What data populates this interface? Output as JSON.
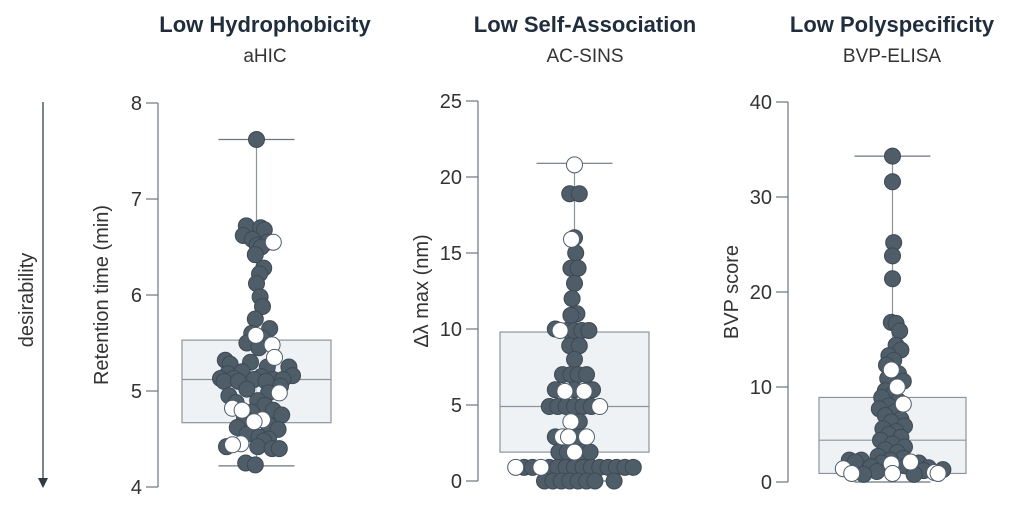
{
  "side_label": "desirability",
  "chart_data": [
    {
      "type": "scatter",
      "title": "Low Hydrophobicity",
      "subtitle": "aHIC",
      "ylabel": "Retention time (min)",
      "ylim": [
        4,
        8
      ],
      "yticks": [
        4,
        5,
        6,
        7,
        8
      ],
      "box": {
        "q1": 4.67,
        "median": 5.12,
        "q3": 5.53,
        "whisker_low": 4.22,
        "whisker_high": 7.62
      },
      "point_color": "#4f5d69",
      "highlight_color": "#ffffff",
      "points": [
        {
          "y": 7.62,
          "x": 0.0,
          "hl": false
        },
        {
          "y": 6.72,
          "x": -0.85,
          "hl": false
        },
        {
          "y": 6.7,
          "x": 0.35,
          "hl": false
        },
        {
          "y": 6.68,
          "x": 0.65,
          "hl": false
        },
        {
          "y": 6.62,
          "x": -1.1,
          "hl": false
        },
        {
          "y": 6.58,
          "x": -0.35,
          "hl": false
        },
        {
          "y": 6.55,
          "x": 0.9,
          "hl": false
        },
        {
          "y": 6.52,
          "x": 0.05,
          "hl": false
        },
        {
          "y": 6.5,
          "x": 0.4,
          "hl": false
        },
        {
          "y": 6.55,
          "x": 1.4,
          "hl": true
        },
        {
          "y": 6.42,
          "x": -0.1,
          "hl": false
        },
        {
          "y": 6.28,
          "x": 0.6,
          "hl": false
        },
        {
          "y": 6.22,
          "x": 0.25,
          "hl": false
        },
        {
          "y": 6.12,
          "x": 0.0,
          "hl": false
        },
        {
          "y": 5.98,
          "x": 0.3,
          "hl": false
        },
        {
          "y": 5.88,
          "x": 0.5,
          "hl": false
        },
        {
          "y": 5.75,
          "x": -0.1,
          "hl": false
        },
        {
          "y": 5.65,
          "x": 1.1,
          "hl": false
        },
        {
          "y": 5.6,
          "x": -0.4,
          "hl": false
        },
        {
          "y": 5.58,
          "x": -0.05,
          "hl": true
        },
        {
          "y": 5.55,
          "x": 0.5,
          "hl": false
        },
        {
          "y": 5.5,
          "x": -0.8,
          "hl": false
        },
        {
          "y": 5.48,
          "x": 1.3,
          "hl": true
        },
        {
          "y": 5.45,
          "x": 0.2,
          "hl": false
        },
        {
          "y": 5.35,
          "x": 1.5,
          "hl": true
        },
        {
          "y": 5.32,
          "x": -2.6,
          "hl": false
        },
        {
          "y": 5.3,
          "x": -0.5,
          "hl": false
        },
        {
          "y": 5.28,
          "x": -2.2,
          "hl": false
        },
        {
          "y": 5.25,
          "x": 0.9,
          "hl": false
        },
        {
          "y": 5.25,
          "x": 2.7,
          "hl": false
        },
        {
          "y": 5.2,
          "x": -1.2,
          "hl": false
        },
        {
          "y": 5.18,
          "x": -2.4,
          "hl": false
        },
        {
          "y": 5.16,
          "x": 3.0,
          "hl": false
        },
        {
          "y": 5.15,
          "x": 0.4,
          "hl": false
        },
        {
          "y": 5.13,
          "x": -3.0,
          "hl": false
        },
        {
          "y": 5.13,
          "x": -1.9,
          "hl": false
        },
        {
          "y": 5.12,
          "x": -0.2,
          "hl": false
        },
        {
          "y": 5.12,
          "x": 1.4,
          "hl": false
        },
        {
          "y": 5.12,
          "x": 2.2,
          "hl": false
        },
        {
          "y": 5.1,
          "x": -2.7,
          "hl": false
        },
        {
          "y": 5.1,
          "x": -1.5,
          "hl": false
        },
        {
          "y": 5.1,
          "x": 0.8,
          "hl": false
        },
        {
          "y": 5.05,
          "x": 2.0,
          "hl": false
        },
        {
          "y": 5.02,
          "x": -0.8,
          "hl": false
        },
        {
          "y": 4.98,
          "x": 1.0,
          "hl": false
        },
        {
          "y": 4.98,
          "x": 1.9,
          "hl": true
        },
        {
          "y": 4.95,
          "x": -2.3,
          "hl": false
        },
        {
          "y": 4.9,
          "x": 0.1,
          "hl": false
        },
        {
          "y": 4.88,
          "x": -1.7,
          "hl": false
        },
        {
          "y": 4.85,
          "x": 0.7,
          "hl": false
        },
        {
          "y": 4.82,
          "x": -2.0,
          "hl": true
        },
        {
          "y": 4.8,
          "x": -1.2,
          "hl": true
        },
        {
          "y": 4.8,
          "x": 1.4,
          "hl": false
        },
        {
          "y": 4.78,
          "x": -0.4,
          "hl": false
        },
        {
          "y": 4.75,
          "x": 2.1,
          "hl": false
        },
        {
          "y": 4.72,
          "x": -1.0,
          "hl": false
        },
        {
          "y": 4.7,
          "x": 0.5,
          "hl": true
        },
        {
          "y": 4.68,
          "x": -0.2,
          "hl": true
        },
        {
          "y": 4.65,
          "x": 1.0,
          "hl": false
        },
        {
          "y": 4.62,
          "x": -1.6,
          "hl": false
        },
        {
          "y": 4.6,
          "x": 1.8,
          "hl": false
        },
        {
          "y": 4.55,
          "x": -0.8,
          "hl": false
        },
        {
          "y": 4.52,
          "x": 0.2,
          "hl": false
        },
        {
          "y": 4.5,
          "x": 1.0,
          "hl": false
        },
        {
          "y": 4.48,
          "x": 0.6,
          "hl": false
        },
        {
          "y": 4.45,
          "x": -1.3,
          "hl": true
        },
        {
          "y": 4.44,
          "x": -2.0,
          "hl": true
        },
        {
          "y": 4.42,
          "x": -2.5,
          "hl": false
        },
        {
          "y": 4.42,
          "x": 0.1,
          "hl": false
        },
        {
          "y": 4.4,
          "x": 1.3,
          "hl": false
        },
        {
          "y": 4.4,
          "x": 1.9,
          "hl": false
        },
        {
          "y": 4.25,
          "x": -0.9,
          "hl": false
        },
        {
          "y": 4.23,
          "x": -0.1,
          "hl": false
        }
      ]
    },
    {
      "type": "scatter",
      "title": "Low Self-Association",
      "subtitle": "AC-SINS",
      "ylabel": "Δλ max (nm)",
      "ylim": [
        0,
        25
      ],
      "yticks": [
        0,
        5,
        10,
        15,
        20,
        25
      ],
      "box": {
        "q1": 1.9,
        "median": 4.9,
        "q3": 9.8,
        "whisker_low": 0.0,
        "whisker_high": 20.9
      },
      "point_color": "#4f5d69",
      "highlight_color": "#ffffff",
      "points": [
        {
          "y": 20.8,
          "x": 0.0,
          "hl": true
        },
        {
          "y": 18.9,
          "x": -0.4,
          "hl": false
        },
        {
          "y": 18.9,
          "x": 0.4,
          "hl": false
        },
        {
          "y": 16.0,
          "x": 0.0,
          "hl": false
        },
        {
          "y": 15.9,
          "x": -0.25,
          "hl": true
        },
        {
          "y": 15.0,
          "x": 0.1,
          "hl": false
        },
        {
          "y": 14.0,
          "x": -0.3,
          "hl": false
        },
        {
          "y": 14.0,
          "x": 0.3,
          "hl": false
        },
        {
          "y": 13.0,
          "x": 0.0,
          "hl": false
        },
        {
          "y": 12.0,
          "x": -0.2,
          "hl": false
        },
        {
          "y": 11.0,
          "x": 0.2,
          "hl": false
        },
        {
          "y": 10.9,
          "x": -0.3,
          "hl": false
        },
        {
          "y": 10.0,
          "x": -1.6,
          "hl": false
        },
        {
          "y": 9.9,
          "x": -1.2,
          "hl": true
        },
        {
          "y": 9.9,
          "x": -0.6,
          "hl": false
        },
        {
          "y": 9.9,
          "x": 0.0,
          "hl": false
        },
        {
          "y": 9.9,
          "x": 0.6,
          "hl": false
        },
        {
          "y": 9.9,
          "x": 1.2,
          "hl": false
        },
        {
          "y": 8.9,
          "x": -0.4,
          "hl": false
        },
        {
          "y": 8.9,
          "x": 0.4,
          "hl": false
        },
        {
          "y": 8.0,
          "x": 0.0,
          "hl": false
        },
        {
          "y": 7.0,
          "x": -1.0,
          "hl": false
        },
        {
          "y": 7.0,
          "x": -0.3,
          "hl": false
        },
        {
          "y": 7.0,
          "x": 0.3,
          "hl": false
        },
        {
          "y": 7.0,
          "x": 1.0,
          "hl": false
        },
        {
          "y": 6.0,
          "x": -1.6,
          "hl": false
        },
        {
          "y": 5.9,
          "x": -0.8,
          "hl": true
        },
        {
          "y": 6.0,
          "x": 0.0,
          "hl": false
        },
        {
          "y": 5.9,
          "x": 0.8,
          "hl": true
        },
        {
          "y": 6.0,
          "x": 1.5,
          "hl": false
        },
        {
          "y": 4.9,
          "x": -2.1,
          "hl": false
        },
        {
          "y": 4.9,
          "x": -1.4,
          "hl": false
        },
        {
          "y": 4.9,
          "x": -0.7,
          "hl": false
        },
        {
          "y": 4.9,
          "x": 0.0,
          "hl": false
        },
        {
          "y": 4.9,
          "x": 0.7,
          "hl": false
        },
        {
          "y": 4.9,
          "x": 1.4,
          "hl": false
        },
        {
          "y": 4.9,
          "x": 2.1,
          "hl": true
        },
        {
          "y": 3.9,
          "x": -0.3,
          "hl": true
        },
        {
          "y": 3.9,
          "x": 0.4,
          "hl": false
        },
        {
          "y": 2.9,
          "x": -1.6,
          "hl": false
        },
        {
          "y": 2.9,
          "x": -1.0,
          "hl": true
        },
        {
          "y": 2.9,
          "x": -0.5,
          "hl": true
        },
        {
          "y": 2.9,
          "x": 0.3,
          "hl": false
        },
        {
          "y": 2.9,
          "x": 1.0,
          "hl": true
        },
        {
          "y": 1.9,
          "x": -1.3,
          "hl": false
        },
        {
          "y": 1.9,
          "x": -0.6,
          "hl": false
        },
        {
          "y": 1.9,
          "x": 0.0,
          "hl": true
        },
        {
          "y": 1.9,
          "x": 0.6,
          "hl": false
        },
        {
          "y": 1.9,
          "x": 1.3,
          "hl": false
        },
        {
          "y": 0.9,
          "x": -4.9,
          "hl": true
        },
        {
          "y": 0.9,
          "x": -4.2,
          "hl": false
        },
        {
          "y": 0.9,
          "x": -3.5,
          "hl": false
        },
        {
          "y": 0.9,
          "x": -2.8,
          "hl": true
        },
        {
          "y": 0.9,
          "x": -2.1,
          "hl": false
        },
        {
          "y": 0.9,
          "x": -1.4,
          "hl": false
        },
        {
          "y": 0.9,
          "x": -0.7,
          "hl": false
        },
        {
          "y": 0.9,
          "x": 0.0,
          "hl": false
        },
        {
          "y": 0.9,
          "x": 0.7,
          "hl": false
        },
        {
          "y": 0.9,
          "x": 1.4,
          "hl": false
        },
        {
          "y": 0.9,
          "x": 2.1,
          "hl": false
        },
        {
          "y": 0.9,
          "x": 2.8,
          "hl": false
        },
        {
          "y": 0.9,
          "x": 3.5,
          "hl": false
        },
        {
          "y": 0.9,
          "x": 4.2,
          "hl": false
        },
        {
          "y": 0.9,
          "x": 4.9,
          "hl": false
        },
        {
          "y": 0.0,
          "x": -2.5,
          "hl": false
        },
        {
          "y": 0.0,
          "x": -1.8,
          "hl": false
        },
        {
          "y": 0.0,
          "x": -1.1,
          "hl": false
        },
        {
          "y": 0.0,
          "x": -0.4,
          "hl": false
        },
        {
          "y": 0.0,
          "x": 0.3,
          "hl": false
        },
        {
          "y": 0.0,
          "x": 1.0,
          "hl": false
        },
        {
          "y": 0.0,
          "x": 1.7,
          "hl": false
        },
        {
          "y": 0.0,
          "x": 3.3,
          "hl": false
        }
      ]
    },
    {
      "type": "scatter",
      "title": "Low Polyspecificity",
      "subtitle": "BVP-ELISA",
      "ylabel": "BVP score",
      "ylim": [
        0,
        40
      ],
      "yticks": [
        0,
        10,
        20,
        30,
        40
      ],
      "box": {
        "q1": 0.9,
        "median": 4.4,
        "q3": 8.9,
        "whisker_low": 0.0,
        "whisker_high": 34.3
      },
      "point_color": "#4f5d69",
      "highlight_color": "#ffffff",
      "points": [
        {
          "y": 34.3,
          "x": 0.0,
          "hl": false
        },
        {
          "y": 31.6,
          "x": 0.0,
          "hl": false
        },
        {
          "y": 25.2,
          "x": 0.1,
          "hl": false
        },
        {
          "y": 23.8,
          "x": 0.0,
          "hl": false
        },
        {
          "y": 21.4,
          "x": 0.0,
          "hl": false
        },
        {
          "y": 16.8,
          "x": -0.1,
          "hl": false
        },
        {
          "y": 16.7,
          "x": 0.3,
          "hl": false
        },
        {
          "y": 15.9,
          "x": 0.6,
          "hl": false
        },
        {
          "y": 14.4,
          "x": 0.3,
          "hl": false
        },
        {
          "y": 13.9,
          "x": 0.7,
          "hl": false
        },
        {
          "y": 13.3,
          "x": -0.3,
          "hl": false
        },
        {
          "y": 12.8,
          "x": 0.1,
          "hl": false
        },
        {
          "y": 12.3,
          "x": -0.5,
          "hl": false
        },
        {
          "y": 11.8,
          "x": -0.1,
          "hl": true
        },
        {
          "y": 11.4,
          "x": 0.5,
          "hl": false
        },
        {
          "y": 10.9,
          "x": -0.4,
          "hl": false
        },
        {
          "y": 10.6,
          "x": 0.9,
          "hl": false
        },
        {
          "y": 10.0,
          "x": 0.4,
          "hl": true
        },
        {
          "y": 9.6,
          "x": -0.6,
          "hl": false
        },
        {
          "y": 9.3,
          "x": 0.1,
          "hl": false
        },
        {
          "y": 8.9,
          "x": -0.9,
          "hl": false
        },
        {
          "y": 8.5,
          "x": 0.5,
          "hl": false
        },
        {
          "y": 8.2,
          "x": 0.9,
          "hl": true
        },
        {
          "y": 8.0,
          "x": -0.3,
          "hl": false
        },
        {
          "y": 7.7,
          "x": -1.1,
          "hl": false
        },
        {
          "y": 7.4,
          "x": 0.2,
          "hl": false
        },
        {
          "y": 7.0,
          "x": -0.6,
          "hl": false
        },
        {
          "y": 6.6,
          "x": 0.7,
          "hl": false
        },
        {
          "y": 6.3,
          "x": -0.1,
          "hl": false
        },
        {
          "y": 5.9,
          "x": 1.0,
          "hl": false
        },
        {
          "y": 5.6,
          "x": -0.8,
          "hl": false
        },
        {
          "y": 5.3,
          "x": 0.3,
          "hl": false
        },
        {
          "y": 5.0,
          "x": -0.3,
          "hl": false
        },
        {
          "y": 4.7,
          "x": 0.7,
          "hl": false
        },
        {
          "y": 4.4,
          "x": -1.0,
          "hl": false
        },
        {
          "y": 4.0,
          "x": 0.0,
          "hl": false
        },
        {
          "y": 3.7,
          "x": 1.0,
          "hl": false
        },
        {
          "y": 3.4,
          "x": -0.6,
          "hl": false
        },
        {
          "y": 3.1,
          "x": 0.4,
          "hl": false
        },
        {
          "y": 2.7,
          "x": -1.2,
          "hl": false
        },
        {
          "y": 2.5,
          "x": 0.9,
          "hl": false
        },
        {
          "y": 2.3,
          "x": -0.2,
          "hl": false
        },
        {
          "y": 2.1,
          "x": 1.5,
          "hl": true
        },
        {
          "y": 2.3,
          "x": -2.6,
          "hl": false
        },
        {
          "y": 2.3,
          "x": -3.6,
          "hl": false
        },
        {
          "y": 2.1,
          "x": -3.1,
          "hl": false
        },
        {
          "y": 2.0,
          "x": -0.9,
          "hl": false
        },
        {
          "y": 2.0,
          "x": 2.2,
          "hl": false
        },
        {
          "y": 1.9,
          "x": -0.1,
          "hl": true
        },
        {
          "y": 1.7,
          "x": 1.1,
          "hl": false
        },
        {
          "y": 1.6,
          "x": -1.8,
          "hl": false
        },
        {
          "y": 1.5,
          "x": 3.0,
          "hl": false
        },
        {
          "y": 1.4,
          "x": -4.1,
          "hl": true
        },
        {
          "y": 1.3,
          "x": 4.2,
          "hl": false
        },
        {
          "y": 1.2,
          "x": 2.6,
          "hl": false
        },
        {
          "y": 1.1,
          "x": -1.3,
          "hl": false
        },
        {
          "y": 1.0,
          "x": 3.5,
          "hl": true
        },
        {
          "y": 0.9,
          "x": -3.4,
          "hl": true
        },
        {
          "y": 0.9,
          "x": 3.8,
          "hl": true
        },
        {
          "y": 0.9,
          "x": 0.0,
          "hl": true
        },
        {
          "y": 0.8,
          "x": -2.4,
          "hl": false
        },
        {
          "y": 0.8,
          "x": 1.8,
          "hl": false
        }
      ]
    }
  ]
}
